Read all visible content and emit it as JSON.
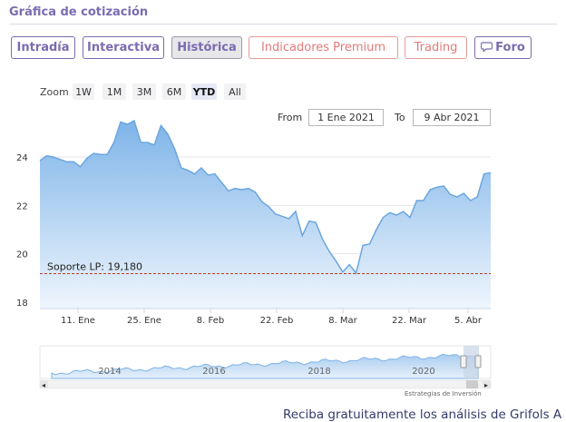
{
  "header": {
    "title": "Gráfica de cotización"
  },
  "tabs": [
    {
      "label": "Intradía",
      "style": "normal"
    },
    {
      "label": "Interactiva",
      "style": "normal"
    },
    {
      "label": "Histórica",
      "style": "active"
    },
    {
      "label": "Indicadores Premium",
      "style": "red"
    },
    {
      "label": "Trading",
      "style": "red"
    },
    {
      "label": "Foro",
      "style": "normal",
      "icon": "chat-bubble-icon"
    }
  ],
  "zoom": {
    "label": "Zoom",
    "buttons": [
      "1W",
      "1M",
      "3M",
      "6M",
      "YTD",
      "All"
    ],
    "active": "YTD"
  },
  "range": {
    "from_label": "From",
    "from_value": "1 Ene 2021",
    "to_label": "To",
    "to_value": "9 Abr 2021"
  },
  "chart_data": {
    "type": "area",
    "y_ticks": [
      "24",
      "22",
      "20",
      "18"
    ],
    "ylim": [
      18,
      25.6
    ],
    "x_ticks": [
      "11. Ene",
      "25. Ene",
      "8. Feb",
      "22. Feb",
      "8. Mar",
      "22. Mar",
      "5. Abr"
    ],
    "support": {
      "label": "Soporte LP: 19,180",
      "value": 19.18
    },
    "series": [
      {
        "values": [
          23.85,
          24.05,
          24.0,
          23.9,
          23.8,
          23.8,
          23.6,
          23.95,
          24.15,
          24.1,
          24.1,
          24.6,
          25.45,
          25.35,
          25.5,
          24.6,
          24.6,
          24.5,
          25.3,
          24.95,
          24.35,
          23.55,
          23.45,
          23.3,
          23.55,
          23.25,
          23.3,
          22.95,
          22.6,
          22.7,
          22.65,
          22.7,
          22.55,
          22.15,
          21.95,
          21.65,
          21.55,
          21.45,
          21.75,
          20.75,
          21.35,
          21.3,
          20.6,
          20.1,
          19.7,
          19.25,
          19.55,
          19.2,
          20.35,
          20.4,
          21.0,
          21.5,
          21.7,
          21.6,
          21.75,
          21.5,
          22.2,
          22.2,
          22.65,
          22.75,
          22.8,
          22.45,
          22.35,
          22.5,
          22.2,
          22.35,
          23.3,
          23.35
        ]
      }
    ]
  },
  "navigator": {
    "year_labels": [
      "2014",
      "2016",
      "2018",
      "2020"
    ]
  },
  "credit": "Estrategias de Inversión",
  "footer": {
    "text": "Reciba gratuitamente los análisis de Grifols A"
  }
}
